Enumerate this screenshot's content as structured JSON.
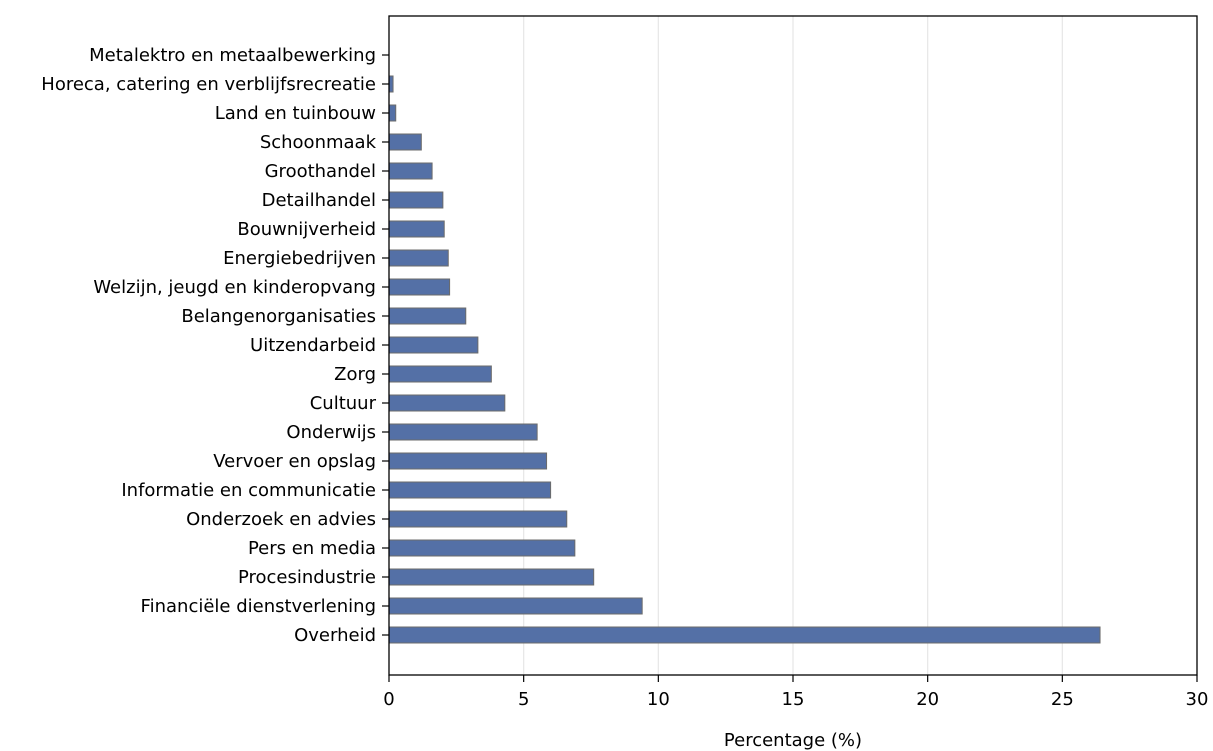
{
  "chart_data": {
    "type": "bar",
    "orientation": "horizontal",
    "title": "",
    "xlabel": "Percentage (%)",
    "ylabel": "",
    "xlim": [
      0,
      30
    ],
    "xticks": [
      0,
      5,
      10,
      15,
      20,
      25,
      30
    ],
    "grid": "vertical",
    "bar_color": "#5470a6",
    "bar_edge_color": "#6b6b6b",
    "categories": [
      "Metalektro en metaalbewerking",
      "Horeca, catering en verblijfsrecreatie",
      "Land en tuinbouw",
      "Schoonmaak",
      "Groothandel",
      "Detailhandel",
      "Bouwnijverheid",
      "Energiebedrijven",
      "Welzijn, jeugd en kinderopvang",
      "Belangenorganisaties",
      "Uitzendarbeid",
      "Zorg",
      "Cultuur",
      "Onderwijs",
      "Vervoer en opslag",
      "Informatie en communicatie",
      "Onderzoek en advies",
      "Pers en media",
      "Procesindustrie",
      "Financiële dienstverlening",
      "Overheid"
    ],
    "values": [
      0.0,
      0.15,
      0.25,
      1.2,
      1.6,
      2.0,
      2.05,
      2.2,
      2.25,
      2.85,
      3.3,
      3.8,
      4.3,
      5.5,
      5.85,
      6.0,
      6.6,
      6.9,
      7.6,
      9.4,
      26.4
    ]
  }
}
